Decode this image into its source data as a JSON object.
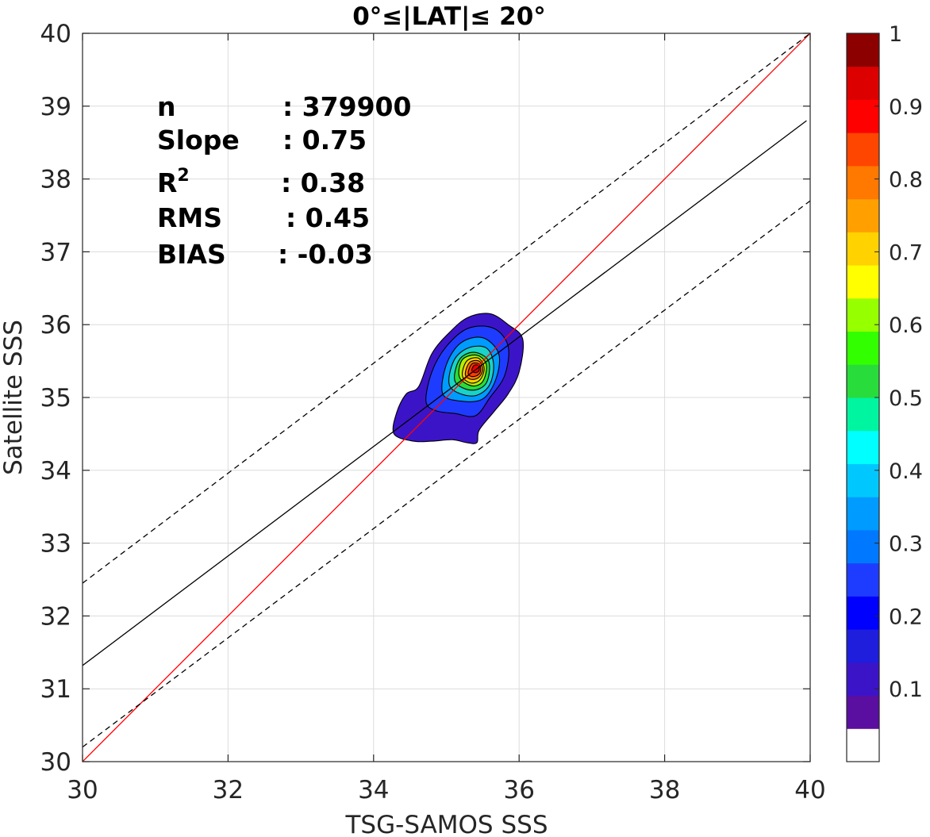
{
  "chart_data": {
    "type": "scatter",
    "subtype": "density-contour",
    "title": "0°≤|LAT|≤ 20°",
    "xlabel": "TSG-SAMOS SSS",
    "ylabel": "Satellite SSS",
    "xlim": [
      30,
      40
    ],
    "ylim": [
      30,
      40
    ],
    "xticks": [
      "30",
      "32",
      "34",
      "36",
      "38",
      "40"
    ],
    "yticks": [
      "30",
      "31",
      "32",
      "33",
      "34",
      "35",
      "36",
      "37",
      "38",
      "39",
      "40"
    ],
    "grid": true,
    "stats": [
      {
        "label": "n",
        "value": ": 379900"
      },
      {
        "label": "Slope",
        "value": ": 0.75"
      },
      {
        "label": "R",
        "sup": "2",
        "value": ": 0.38"
      },
      {
        "label": "RMS",
        "value": ": 0.45"
      },
      {
        "label": "BIAS",
        "value": ": -0.03"
      }
    ],
    "lines": [
      {
        "name": "one-to-one",
        "color": "#ff0000",
        "dash": false,
        "points": [
          [
            30,
            30
          ],
          [
            40,
            40
          ]
        ]
      },
      {
        "name": "regression",
        "color": "#000000",
        "dash": false,
        "points": [
          [
            30,
            31.32
          ],
          [
            39.95,
            38.8
          ]
        ]
      },
      {
        "name": "upper-bound",
        "color": "#000000",
        "dash": true,
        "points": [
          [
            30,
            32.45
          ],
          [
            40,
            40
          ]
        ]
      },
      {
        "name": "lower-bound",
        "color": "#000000",
        "dash": true,
        "points": [
          [
            30,
            30.2
          ],
          [
            40,
            37.7
          ]
        ]
      }
    ],
    "density_peak": {
      "x": 35.42,
      "y": 35.42
    },
    "contour_levels": [
      {
        "level": 0.05,
        "color": "#3c14c8",
        "points": [
          [
            34.28,
            34.5
          ],
          [
            34.32,
            34.8
          ],
          [
            34.45,
            35.05
          ],
          [
            34.62,
            35.15
          ],
          [
            34.8,
            35.6
          ],
          [
            35.05,
            35.9
          ],
          [
            35.3,
            36.1
          ],
          [
            35.6,
            36.15
          ],
          [
            35.85,
            36.0
          ],
          [
            36.05,
            35.8
          ],
          [
            36.0,
            35.35
          ],
          [
            35.85,
            35.05
          ],
          [
            35.65,
            34.8
          ],
          [
            35.45,
            34.55
          ],
          [
            35.42,
            34.38
          ],
          [
            35.28,
            34.38
          ],
          [
            35.08,
            34.42
          ],
          [
            34.8,
            34.4
          ],
          [
            34.55,
            34.4
          ]
        ]
      },
      {
        "level": 0.15,
        "color": "#1e3cff",
        "points": [
          [
            34.72,
            34.95
          ],
          [
            34.8,
            35.35
          ],
          [
            35.0,
            35.7
          ],
          [
            35.3,
            35.95
          ],
          [
            35.65,
            35.95
          ],
          [
            35.85,
            35.7
          ],
          [
            35.8,
            35.3
          ],
          [
            35.6,
            35.0
          ],
          [
            35.4,
            34.75
          ],
          [
            35.12,
            34.78
          ],
          [
            34.85,
            34.82
          ]
        ]
      },
      {
        "level": 0.25,
        "color": "#009bff",
        "points": [
          [
            34.95,
            35.05
          ],
          [
            35.0,
            35.45
          ],
          [
            35.2,
            35.75
          ],
          [
            35.5,
            35.82
          ],
          [
            35.72,
            35.6
          ],
          [
            35.68,
            35.25
          ],
          [
            35.5,
            34.98
          ],
          [
            35.2,
            34.95
          ]
        ]
      },
      {
        "level": 0.35,
        "color": "#19d2c8",
        "points": [
          [
            35.05,
            35.15
          ],
          [
            35.1,
            35.5
          ],
          [
            35.3,
            35.68
          ],
          [
            35.55,
            35.68
          ],
          [
            35.65,
            35.45
          ],
          [
            35.58,
            35.15
          ],
          [
            35.35,
            35.02
          ]
        ]
      },
      {
        "level": 0.45,
        "color": "#28dc3c",
        "points": [
          [
            35.12,
            35.22
          ],
          [
            35.18,
            35.52
          ],
          [
            35.38,
            35.62
          ],
          [
            35.58,
            35.5
          ],
          [
            35.55,
            35.2
          ],
          [
            35.35,
            35.1
          ]
        ]
      },
      {
        "level": 0.55,
        "color": "#b4f000",
        "points": [
          [
            35.18,
            35.28
          ],
          [
            35.22,
            35.52
          ],
          [
            35.42,
            35.58
          ],
          [
            35.55,
            35.45
          ],
          [
            35.5,
            35.22
          ],
          [
            35.35,
            35.16
          ]
        ]
      },
      {
        "level": 0.65,
        "color": "#ffd200",
        "points": [
          [
            35.22,
            35.3
          ],
          [
            35.28,
            35.5
          ],
          [
            35.44,
            35.54
          ],
          [
            35.52,
            35.4
          ],
          [
            35.46,
            35.24
          ],
          [
            35.33,
            35.2
          ]
        ]
      },
      {
        "level": 0.75,
        "color": "#ff7800",
        "points": [
          [
            35.26,
            35.32
          ],
          [
            35.32,
            35.48
          ],
          [
            35.45,
            35.5
          ],
          [
            35.5,
            35.38
          ],
          [
            35.44,
            35.27
          ],
          [
            35.33,
            35.25
          ]
        ]
      },
      {
        "level": 0.85,
        "color": "#ff3c00",
        "points": [
          [
            35.3,
            35.34
          ],
          [
            35.35,
            35.46
          ],
          [
            35.45,
            35.46
          ],
          [
            35.47,
            35.36
          ],
          [
            35.42,
            35.3
          ],
          [
            35.34,
            35.29
          ]
        ]
      },
      {
        "level": 0.95,
        "color": "#e60000",
        "points": [
          [
            35.35,
            35.37
          ],
          [
            35.38,
            35.44
          ],
          [
            35.44,
            35.44
          ],
          [
            35.45,
            35.37
          ],
          [
            35.4,
            35.34
          ]
        ]
      }
    ],
    "colorbar": {
      "ticks": [
        "0.1",
        "0.2",
        "0.3",
        "0.4",
        "0.5",
        "0.6",
        "0.7",
        "0.8",
        "0.9",
        "1"
      ],
      "range": [
        0,
        1
      ],
      "colors": [
        "#ffffff",
        "#5a0fa0",
        "#3c14c8",
        "#1e1edc",
        "#0000ff",
        "#1e3cff",
        "#0078ff",
        "#009bff",
        "#00c8ff",
        "#00ffff",
        "#00f5a0",
        "#28dc3c",
        "#32ff00",
        "#96ff00",
        "#ffff00",
        "#ffd200",
        "#ffa000",
        "#ff7800",
        "#ff4600",
        "#ff0000",
        "#dc0000",
        "#8c0000"
      ]
    }
  }
}
